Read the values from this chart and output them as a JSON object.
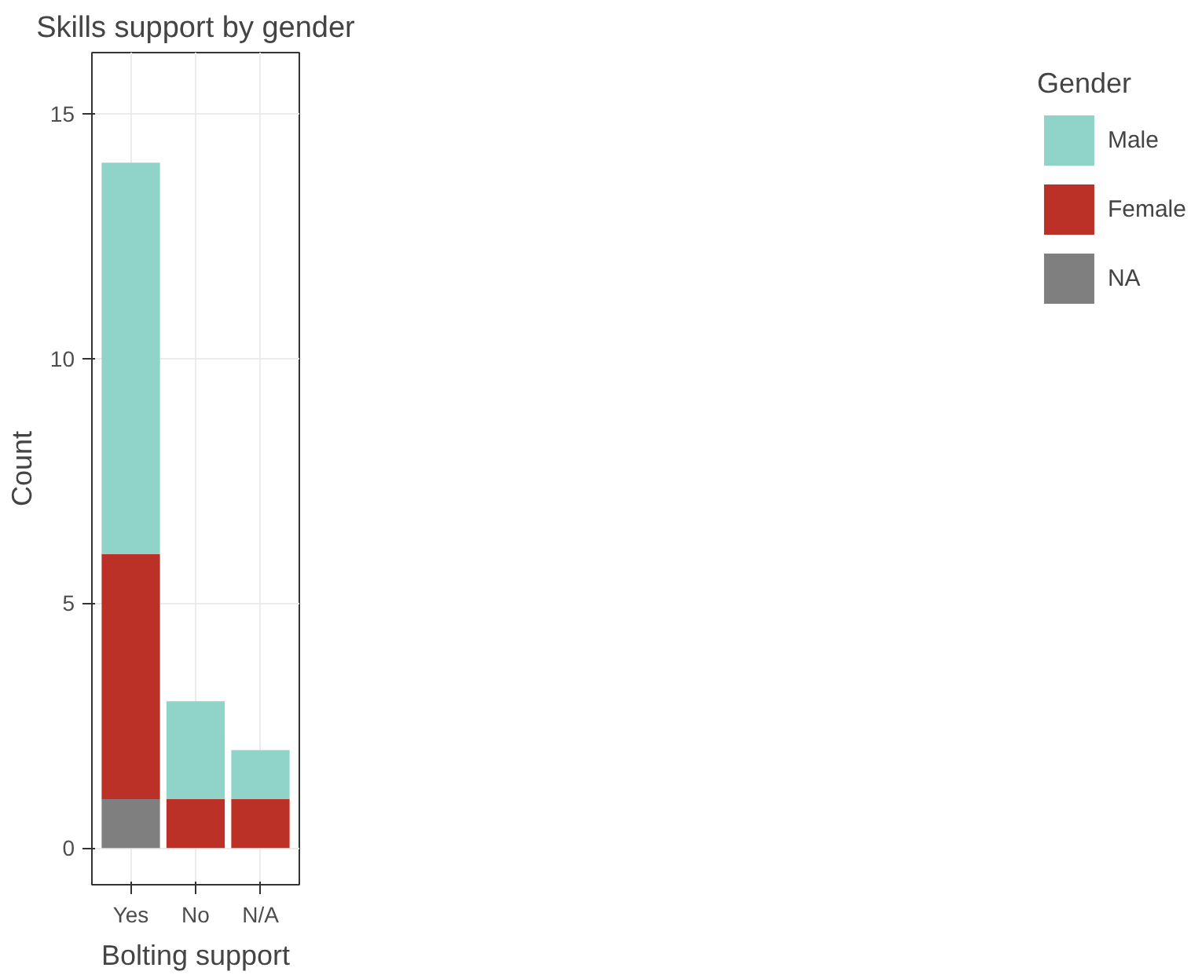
{
  "chart_data": {
    "type": "bar",
    "title": "Skills support by gender",
    "xlabel": "Bolting support",
    "ylabel": "Count",
    "legend_title": "Gender",
    "categories": [
      "Yes",
      "No",
      "N/A"
    ],
    "stacked": true,
    "series": [
      {
        "name": "NA",
        "color": "#7f7f7f",
        "values": [
          1,
          0,
          0
        ]
      },
      {
        "name": "Female",
        "color": "#bb3027",
        "values": [
          5,
          1,
          1
        ]
      },
      {
        "name": "Male",
        "color": "#8fd3c9",
        "values": [
          8,
          2,
          1
        ]
      }
    ],
    "ylim": [
      -0.75,
      16.25
    ],
    "yticks": [
      0,
      5,
      10,
      15
    ],
    "grid": true,
    "legend": "right"
  }
}
